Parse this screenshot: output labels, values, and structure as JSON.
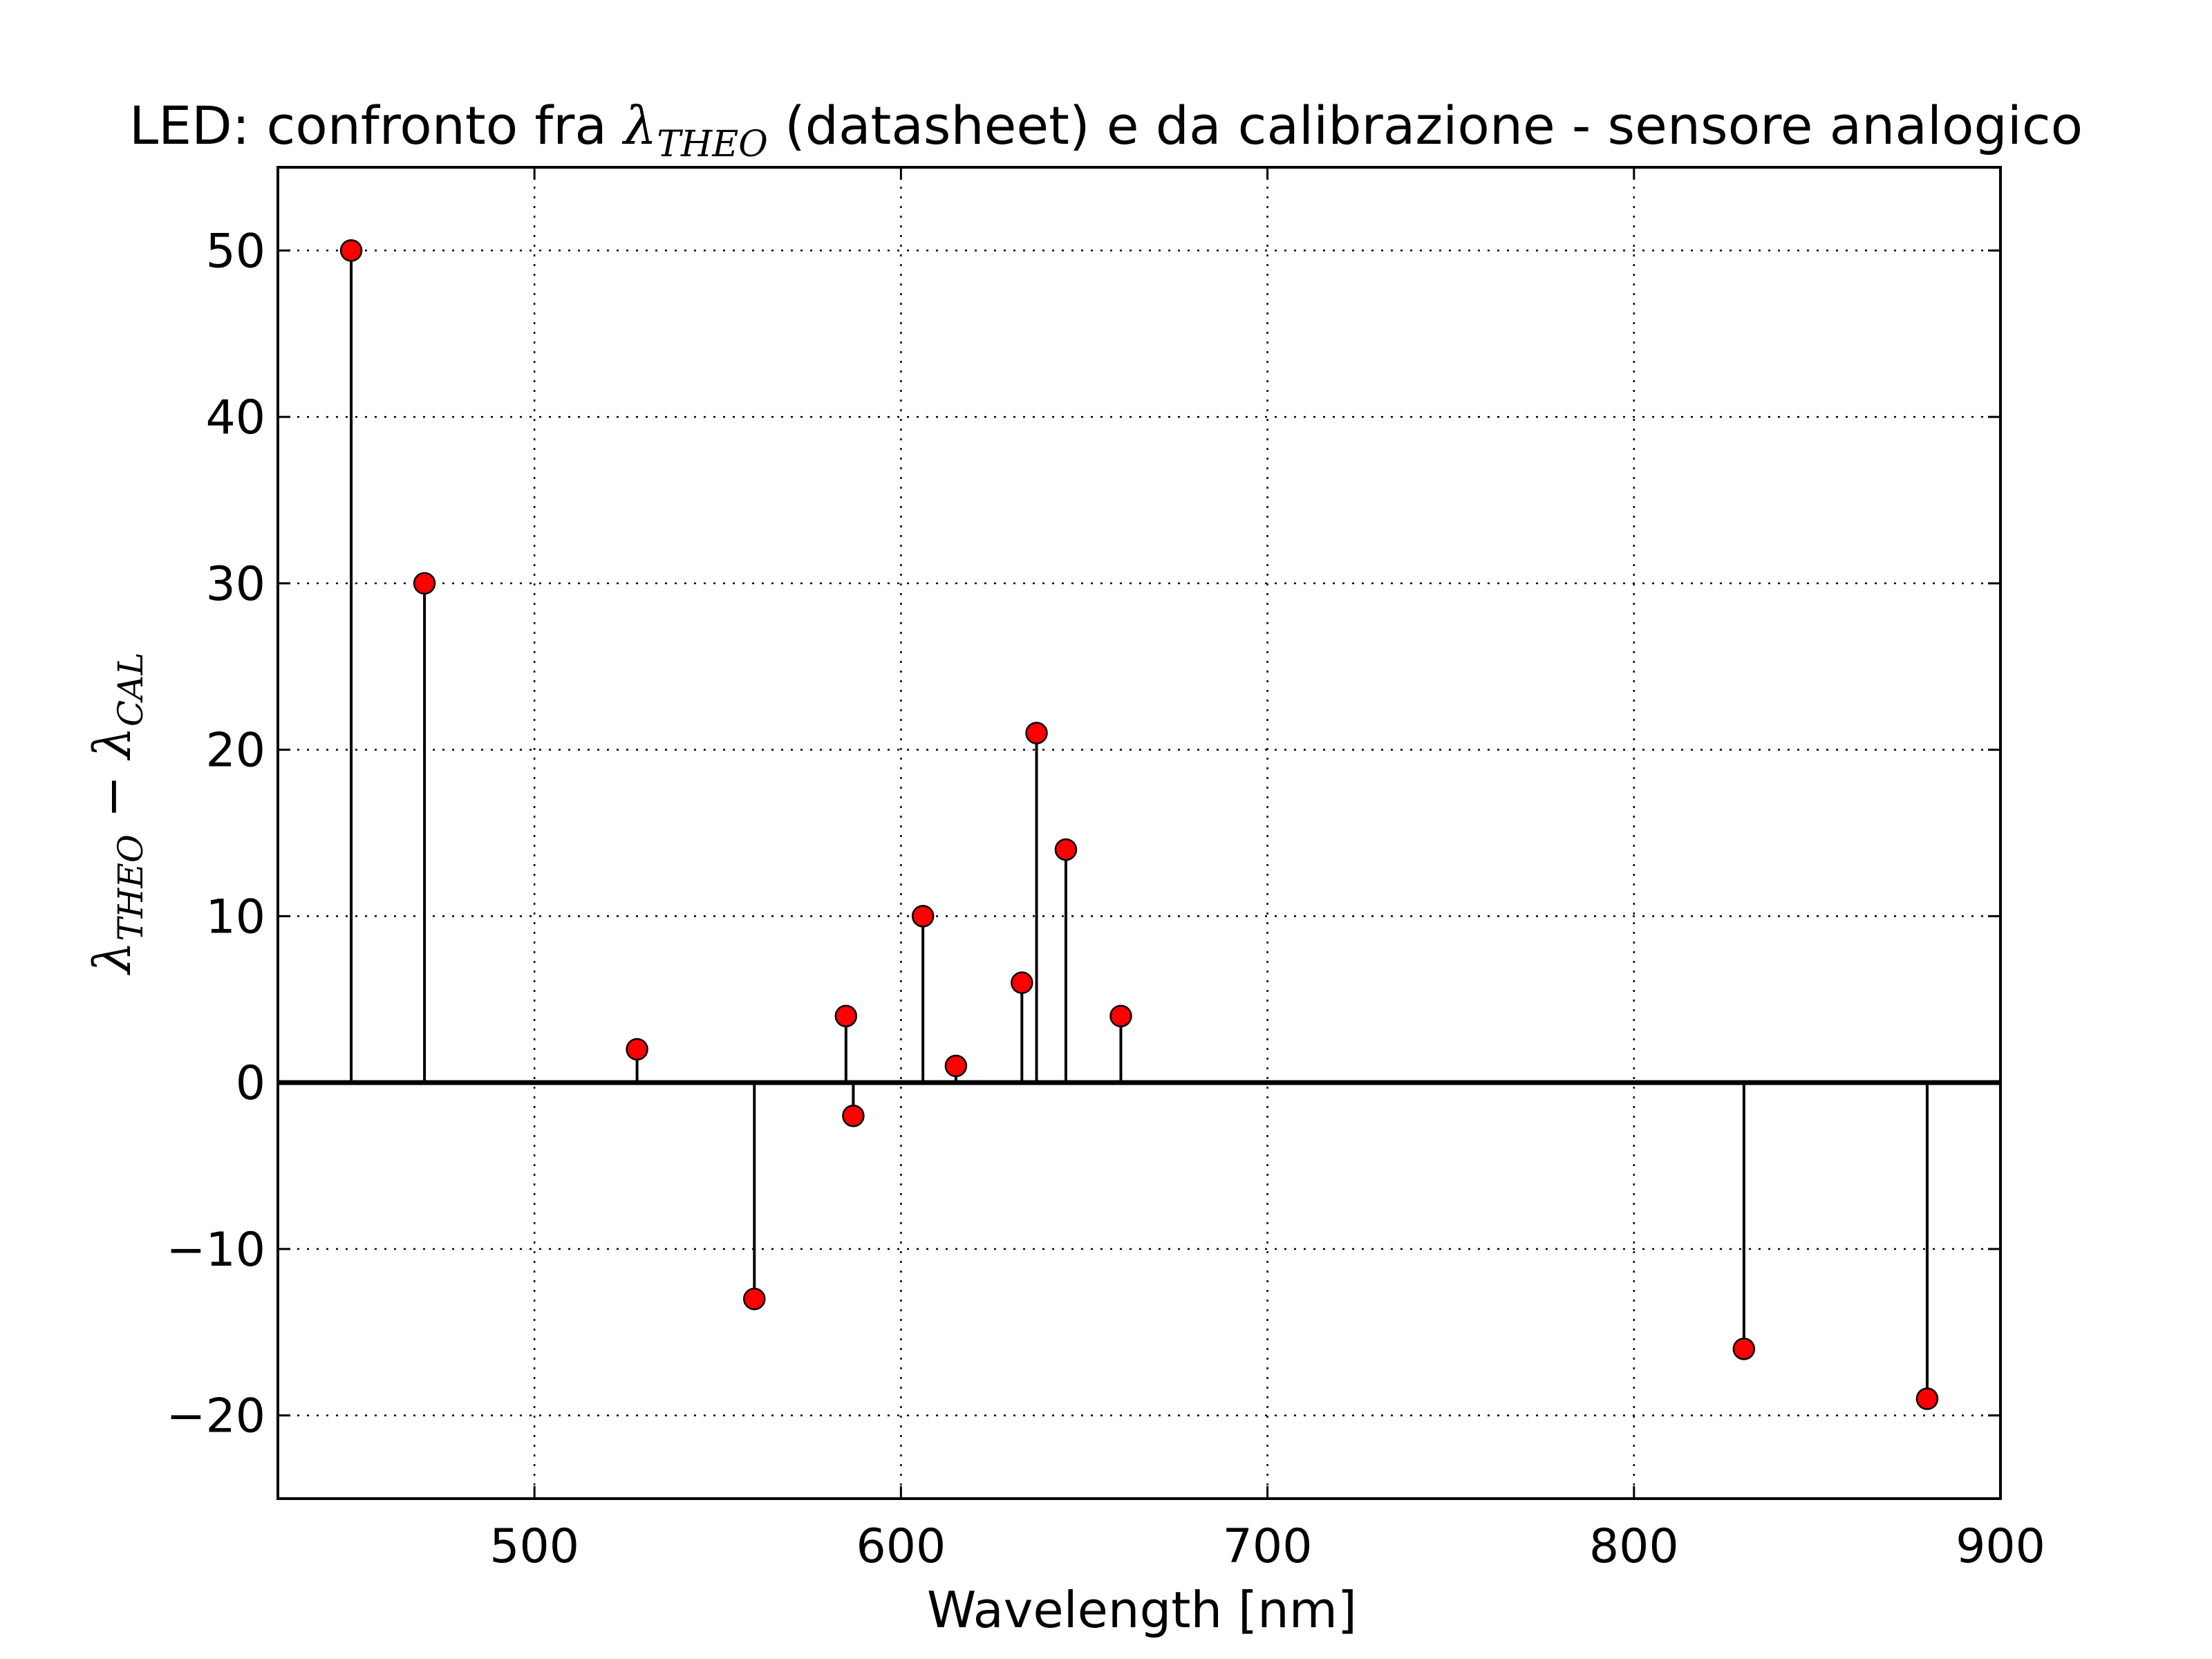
{
  "chart_data": {
    "type": "stem",
    "title_parts": {
      "before": "LED: confronto fra ",
      "symbol": "λ",
      "subscript": "THEO",
      "after": " (datasheet) e da calibrazione - sensore analogico"
    },
    "xlabel": "Wavelength [nm]",
    "ylabel_parts": {
      "symbol1": "λ",
      "subscript1": "THEO",
      "operator": " − ",
      "symbol2": "λ",
      "subscript2": "CAL"
    },
    "xlim": [
      430,
      900
    ],
    "ylim": [
      -25,
      55
    ],
    "xticks": [
      500,
      600,
      700,
      800,
      900
    ],
    "xtick_labels": [
      "500",
      "600",
      "700",
      "800",
      "900"
    ],
    "yticks": [
      -20,
      -10,
      0,
      10,
      20,
      30,
      40,
      50
    ],
    "ytick_labels": [
      "−20",
      "−10",
      "0",
      "10",
      "20",
      "30",
      "40",
      "50"
    ],
    "grid": true,
    "marker_color": "#ff0000",
    "stem_color": "#000000",
    "points": [
      {
        "x": 450,
        "y": 50
      },
      {
        "x": 470,
        "y": 30
      },
      {
        "x": 528,
        "y": 2
      },
      {
        "x": 560,
        "y": -13
      },
      {
        "x": 585,
        "y": 4
      },
      {
        "x": 587,
        "y": -2
      },
      {
        "x": 606,
        "y": 10
      },
      {
        "x": 615,
        "y": 1
      },
      {
        "x": 633,
        "y": 6
      },
      {
        "x": 637,
        "y": 21
      },
      {
        "x": 645,
        "y": 14
      },
      {
        "x": 660,
        "y": 4
      },
      {
        "x": 830,
        "y": -16
      },
      {
        "x": 880,
        "y": -19
      }
    ]
  }
}
